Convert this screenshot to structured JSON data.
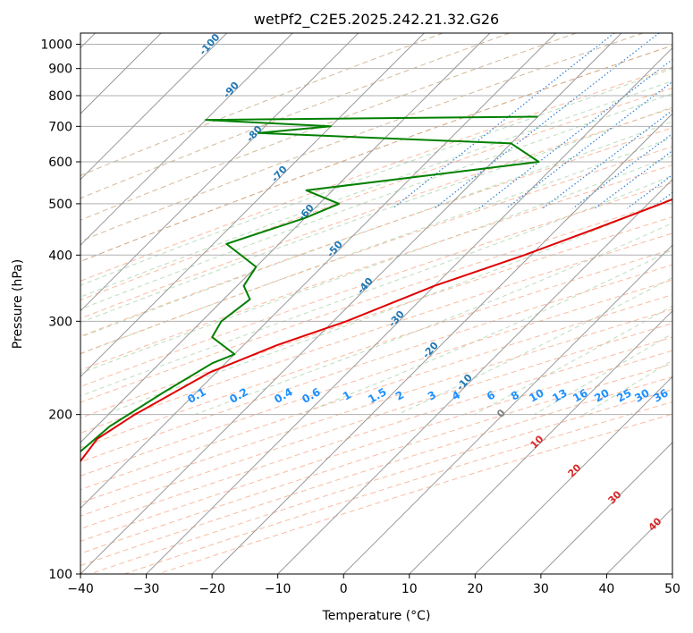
{
  "chart_data": {
    "type": "skew-t",
    "title": "wetPf2_C2E5.2025.242.21.32.G26",
    "xlabel": "Temperature (°C)",
    "ylabel": "Pressure (hPa)",
    "xlim": [
      -40,
      50
    ],
    "ylim": [
      1050,
      100
    ],
    "y_scale": "log",
    "grid": true,
    "x_ticks": [
      "−40",
      "−30",
      "−20",
      "−10",
      "0",
      "10",
      "20",
      "30",
      "40",
      "50"
    ],
    "y_ticks": [
      "100",
      "200",
      "300",
      "400",
      "500",
      "600",
      "700",
      "800",
      "900",
      "1000"
    ],
    "temperature": {
      "color": "#e00000",
      "points": [
        [
          -40,
          100
        ],
        [
          -48,
          120
        ],
        [
          -53,
          140
        ],
        [
          -57,
          160
        ],
        [
          -58,
          180
        ],
        [
          -56,
          200
        ],
        [
          -51,
          240
        ],
        [
          -45,
          270
        ],
        [
          -38,
          300
        ],
        [
          -30,
          350
        ],
        [
          -21,
          400
        ],
        [
          -14,
          450
        ],
        [
          -8,
          500
        ],
        [
          -3,
          550
        ],
        [
          0,
          600
        ],
        [
          4,
          650
        ],
        [
          6.5,
          680
        ],
        [
          6,
          700
        ],
        [
          4,
          730
        ]
      ]
    },
    "dewpoint": {
      "color": "#008000",
      "points": [
        [
          -45,
          100
        ],
        [
          -52,
          120
        ],
        [
          -58,
          140
        ],
        [
          -59,
          160
        ],
        [
          -58,
          190
        ],
        [
          -55,
          220
        ],
        [
          -52,
          250
        ],
        [
          -50,
          260
        ],
        [
          -56,
          280
        ],
        [
          -57,
          300
        ],
        [
          -56,
          330
        ],
        [
          -59,
          350
        ],
        [
          -60,
          380
        ],
        [
          -68,
          420
        ],
        [
          -60,
          470
        ],
        [
          -57,
          500
        ],
        [
          -64,
          530
        ],
        [
          -33,
          600
        ],
        [
          -40,
          650
        ],
        [
          -80,
          680
        ],
        [
          -70,
          700
        ],
        [
          -90,
          720
        ],
        [
          -40,
          730
        ]
      ]
    },
    "mixing_ratio_labels": [
      "0.1",
      "0.2",
      "0.4",
      "0.6",
      "1",
      "1.5",
      "2",
      "3",
      "4",
      "6",
      "8",
      "10",
      "13",
      "16",
      "20",
      "25",
      "30",
      "36"
    ],
    "dry_adiabat_labels": [
      "-100",
      "-90",
      "-80",
      "-70",
      "-60",
      "-50",
      "-40",
      "-30",
      "-20",
      "-10"
    ],
    "moist_adiabat_labels": [
      "0",
      "10",
      "20",
      "30",
      "40"
    ]
  }
}
